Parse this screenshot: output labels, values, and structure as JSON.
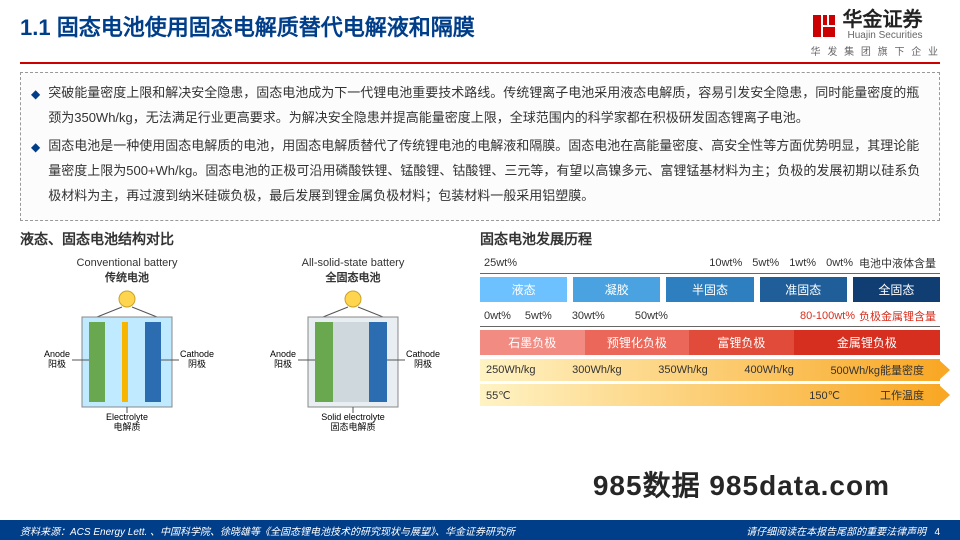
{
  "header": {
    "title": "1.1 固态电池使用固态电解质替代电解液和隔膜",
    "logo_cn": "华金证券",
    "logo_en": "Huajin Securities",
    "logo_sub": "华 发 集 团 旗 下 企 业"
  },
  "bullets": [
    "突破能量密度上限和解决安全隐患，固态电池成为下一代锂电池重要技术路线。传统锂离子电池采用液态电解质，容易引发安全隐患，同时能量密度的瓶颈为350Wh/kg，无法满足行业更高要求。为解决安全隐患并提高能量密度上限，全球范围内的科学家都在积极研发固态锂离子电池。",
    "固态电池是一种使用固态电解质的电池，用固态电解质替代了传统锂电池的电解液和隔膜。固态电池在高能量密度、高安全性等方面优势明显，其理论能量密度上限为500+Wh/kg。固态电池的正极可沿用磷酸铁锂、锰酸锂、钴酸锂、三元等，有望以高镍多元、富锂锰基材料为主；负极的发展初期以硅系负极材料为主，再过渡到纳米硅碳负极，最后发展到锂金属负极材料；包装材料一般采用铝塑膜。"
  ],
  "left": {
    "title": "液态、固态电池结构对比",
    "conv": {
      "en": "Conventional battery",
      "cn": "传统电池",
      "anode": "Anode",
      "anode_cn": "阳极",
      "cathode": "Cathode",
      "cathode_cn": "阴极",
      "elec": "Electrolyte",
      "elec_cn": "电解质"
    },
    "ssb": {
      "en": "All-solid-state battery",
      "cn": "全固态电池",
      "anode": "Anode",
      "anode_cn": "阳极",
      "cathode": "Cathode",
      "cathode_cn": "阴极",
      "elec": "Solid electrolyte",
      "elec_cn": "固态电解质"
    },
    "colors": {
      "anode": "#6aa84f",
      "cathode": "#2b6db0",
      "sep": "#f7b500",
      "liq": "#bfeaff",
      "solid": "#cfd8dc",
      "case": "#555"
    }
  },
  "right": {
    "title": "固态电池发展历程",
    "liquid_scale": {
      "ticks": [
        "25wt%",
        "10wt%",
        "5wt%",
        "1wt%",
        "0wt%"
      ],
      "label": "电池中液体含量"
    },
    "states": [
      {
        "name": "液态",
        "color": "#6ec1ff"
      },
      {
        "name": "凝胶",
        "color": "#4aa3e0"
      },
      {
        "name": "半固态",
        "color": "#2e7fbf"
      },
      {
        "name": "准固态",
        "color": "#1f5e99"
      },
      {
        "name": "全固态",
        "color": "#103e73"
      }
    ],
    "metal_scale": {
      "ticks": [
        "0wt%",
        "5wt%",
        "30wt%",
        "50wt%",
        "80-100wt%"
      ],
      "label": "负极金属锂含量"
    },
    "anodes": [
      {
        "name": "石墨负极",
        "color": "#f28b82"
      },
      {
        "name": "预锂化负极",
        "color": "#ea6759"
      },
      {
        "name": "富锂负极",
        "color": "#e04b3a"
      },
      {
        "name": "金属锂负极",
        "color": "#d62f1f"
      }
    ],
    "energy_bar": {
      "ticks": [
        "250Wh/kg",
        "300Wh/kg",
        "350Wh/kg",
        "400Wh/kg",
        "500Wh/kg"
      ],
      "label": "能量密度",
      "grad_from": "#fff3c4",
      "grad_to": "#f9a825"
    },
    "temp_bar": {
      "ticks": [
        "55℃",
        "150℃"
      ],
      "label": "工作温度",
      "grad_from": "#fff3c4",
      "grad_to": "#f9a825"
    }
  },
  "watermark": "985数据 985data.com",
  "footer": {
    "source": "资料来源：ACS Energy Lett. 、中国科学院、徐晓雄等《全固态锂电池技术的研究现状与展望》、华金证券研究所",
    "note": "请仔细阅读在本报告尾部的重要法律声明",
    "page": "4"
  }
}
